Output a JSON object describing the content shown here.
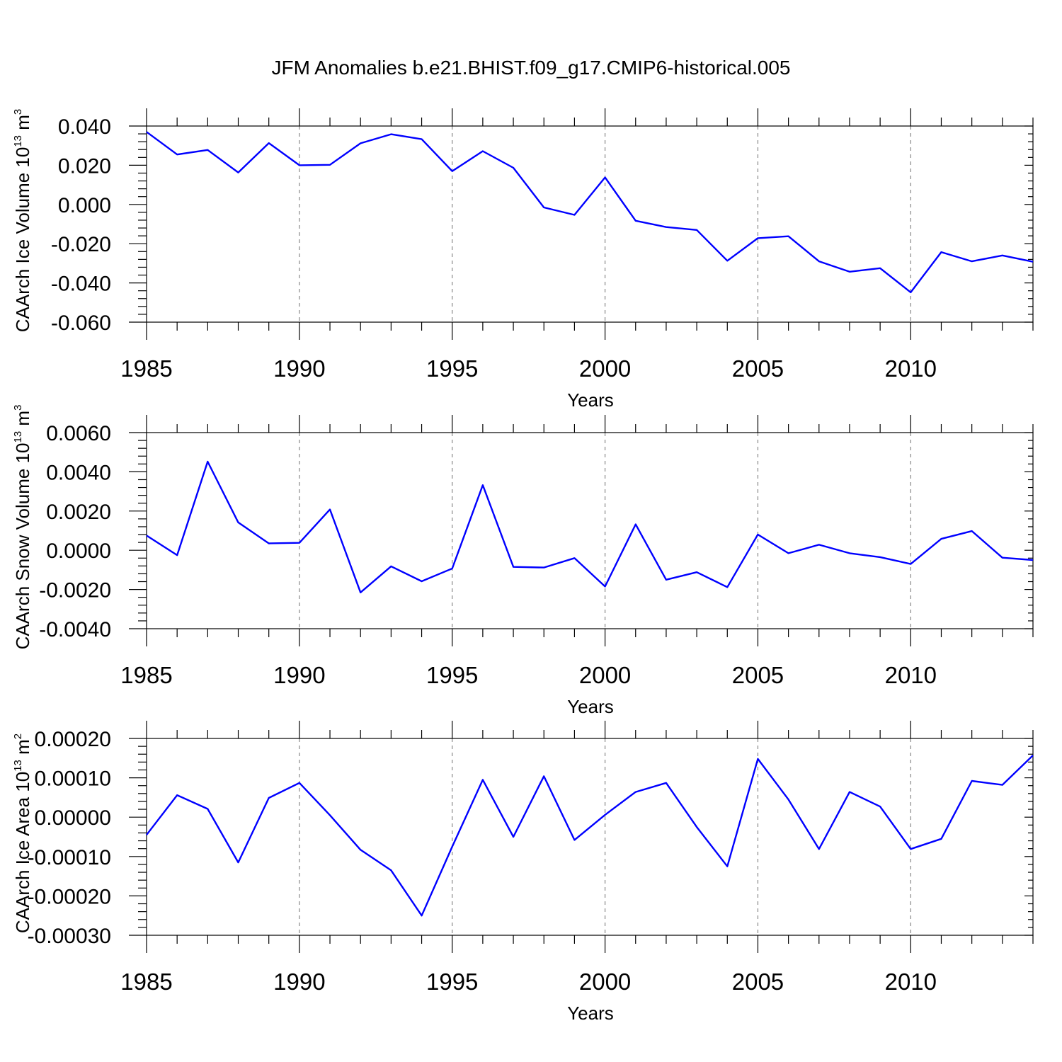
{
  "figure_title": "JFM Anomalies b.e21.BHIST.f09_g17.CMIP6-historical.005",
  "line_color": "#0000ff",
  "chart_data": [
    {
      "type": "line",
      "xlabel": "Years",
      "ylabel": "CAArch Ice Volume 10",
      "ylabel_exp": "13",
      "ylabel_unit": " m",
      "ylabel_unit_exp": "3",
      "xlim": [
        1985,
        2014
      ],
      "ylim": [
        -0.06,
        0.04
      ],
      "x_ticks": [
        "1985",
        "1990",
        "1995",
        "2000",
        "2005",
        "2010"
      ],
      "y_ticks": [
        "0.040",
        "0.020",
        "0.000",
        "-0.020",
        "-0.040",
        "-0.060"
      ],
      "x": [
        1985,
        1986,
        1987,
        1988,
        1989,
        1990,
        1991,
        1992,
        1993,
        1994,
        1995,
        1996,
        1997,
        1998,
        1999,
        2000,
        2001,
        2002,
        2003,
        2004,
        2005,
        2006,
        2007,
        2008,
        2009,
        2010,
        2011,
        2012,
        2013,
        2014
      ],
      "values": [
        0.037,
        0.0255,
        0.0278,
        0.0163,
        0.0313,
        0.02,
        0.0202,
        0.0312,
        0.0358,
        0.0333,
        0.017,
        0.0272,
        0.0187,
        -0.0015,
        -0.0053,
        0.0138,
        -0.0083,
        -0.0115,
        -0.013,
        -0.0287,
        -0.0172,
        -0.0162,
        -0.029,
        -0.0343,
        -0.0325,
        -0.0448,
        -0.0243,
        -0.029,
        -0.026,
        -0.0292
      ]
    },
    {
      "type": "line",
      "xlabel": "Years",
      "ylabel": "CAArch Snow Volume 10",
      "ylabel_exp": "13",
      "ylabel_unit": " m",
      "ylabel_unit_exp": "3",
      "xlim": [
        1985,
        2014
      ],
      "ylim": [
        -0.004,
        0.006
      ],
      "x_ticks": [
        "1985",
        "1990",
        "1995",
        "2000",
        "2005",
        "2010"
      ],
      "y_ticks": [
        "0.0060",
        "0.0040",
        "0.0020",
        "0.0000",
        "-0.0020",
        "-0.0040"
      ],
      "x": [
        1985,
        1986,
        1987,
        1988,
        1989,
        1990,
        1991,
        1992,
        1993,
        1994,
        1995,
        1996,
        1997,
        1998,
        1999,
        2000,
        2001,
        2002,
        2003,
        2004,
        2005,
        2006,
        2007,
        2008,
        2009,
        2010,
        2011,
        2012,
        2013,
        2014
      ],
      "values": [
        0.00075,
        -0.00025,
        0.00452,
        0.00142,
        0.00035,
        0.00038,
        0.00208,
        -0.00215,
        -0.00082,
        -0.00158,
        -0.00093,
        0.00332,
        -0.00085,
        -0.00088,
        -0.0004,
        -0.00185,
        0.00132,
        -0.0015,
        -0.00112,
        -0.00188,
        0.0008,
        -0.00015,
        0.00028,
        -0.00015,
        -0.00035,
        -0.0007,
        0.00058,
        0.00098,
        -0.00038,
        -0.0005
      ]
    },
    {
      "type": "line",
      "xlabel": "Years",
      "ylabel": "CAArch Ice Area 10",
      "ylabel_exp": "13",
      "ylabel_unit": " m",
      "ylabel_unit_exp": "2",
      "xlim": [
        1985,
        2014
      ],
      "ylim": [
        -0.0003,
        0.0002
      ],
      "x_ticks": [
        "1985",
        "1990",
        "1995",
        "2000",
        "2005",
        "2010"
      ],
      "y_ticks": [
        "0.00020",
        "0.00010",
        "0.00000",
        "-0.00010",
        "-0.00020",
        "-0.00030"
      ],
      "x": [
        1985,
        1986,
        1987,
        1988,
        1989,
        1990,
        1991,
        1992,
        1993,
        1994,
        1995,
        1996,
        1997,
        1998,
        1999,
        2000,
        2001,
        2002,
        2003,
        2004,
        2005,
        2006,
        2007,
        2008,
        2009,
        2010,
        2011,
        2012,
        2013,
        2014
      ],
      "values": [
        -4.5e-05,
        5.6e-05,
        2.1e-05,
        -0.000115,
        4.9e-05,
        8.7e-05,
        5e-06,
        -8.3e-05,
        -0.000135,
        -0.00025,
        -7.5e-05,
        9.5e-05,
        -5e-05,
        0.000104,
        -5.8e-05,
        6e-06,
        6.4e-05,
        8.7e-05,
        -2.5e-05,
        -0.000125,
        0.000148,
        4.5e-05,
        -8.1e-05,
        6.4e-05,
        2.7e-05,
        -8.1e-05,
        -5.5e-05,
        9.2e-05,
        8.2e-05,
        0.000157
      ]
    }
  ]
}
